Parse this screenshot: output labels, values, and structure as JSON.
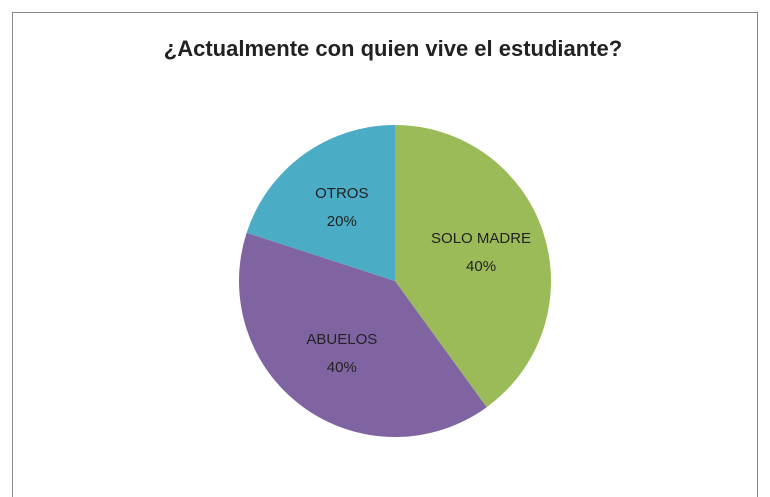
{
  "chart_data": {
    "type": "pie",
    "title": "¿Actualmente con quien vive el estudiante?",
    "categories": [
      "SOLO MADRE",
      "ABUELOS",
      "OTROS"
    ],
    "values": [
      40,
      40,
      20
    ],
    "value_labels": [
      "40%",
      "40%",
      "20%"
    ],
    "colors": [
      "#9bbb59",
      "#8064a2",
      "#4bacc6"
    ]
  }
}
